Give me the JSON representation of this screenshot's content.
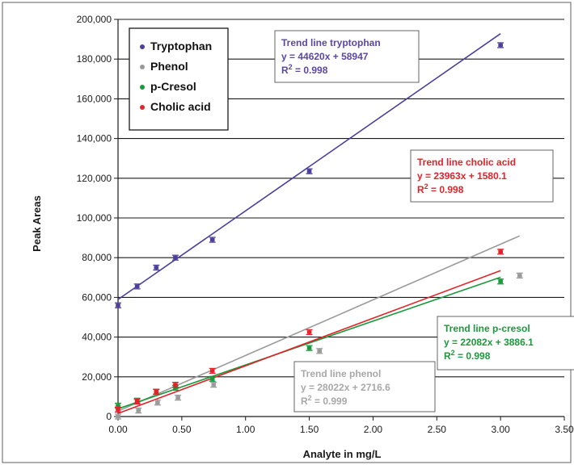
{
  "chart_data": {
    "type": "scatter",
    "title": "",
    "xlabel": "Analyte in mg/L",
    "ylabel": "Peak Areas",
    "xlim": [
      0,
      3.5
    ],
    "ylim": [
      0,
      200000
    ],
    "x_ticks": [
      "0.00",
      "0.50",
      "1.00",
      "1.50",
      "2.00",
      "2.50",
      "3.00",
      "3.50"
    ],
    "y_ticks": [
      "0",
      "20,000",
      "40,000",
      "60,000",
      "80,000",
      "100,000",
      "120,000",
      "140,000",
      "160,000",
      "180,000",
      "200,000"
    ],
    "grid": "horizontal",
    "legend_position": "top-left",
    "series": [
      {
        "name": "Tryptophan",
        "color": "#4b3f9a",
        "slope": 44620,
        "intercept": 58947,
        "points": [
          {
            "x": 0.0,
            "y": 56000
          },
          {
            "x": 0.15,
            "y": 65500
          },
          {
            "x": 0.3,
            "y": 75000
          },
          {
            "x": 0.45,
            "y": 80000
          },
          {
            "x": 0.74,
            "y": 89000
          },
          {
            "x": 1.5,
            "y": 123500
          },
          {
            "x": 3.0,
            "y": 187000
          }
        ]
      },
      {
        "name": "Phenol",
        "color": "#9a9a9a",
        "slope": 28022,
        "intercept": 2716.6,
        "points": [
          {
            "x": 0.0,
            "y": 0
          },
          {
            "x": 0.16,
            "y": 3000
          },
          {
            "x": 0.31,
            "y": 7000
          },
          {
            "x": 0.47,
            "y": 9500
          },
          {
            "x": 0.75,
            "y": 16000
          },
          {
            "x": 1.58,
            "y": 33000
          },
          {
            "x": 3.15,
            "y": 71000
          }
        ]
      },
      {
        "name": "p-Cresol",
        "color": "#1a9a3c",
        "slope": 22082,
        "intercept": 3886.1,
        "points": [
          {
            "x": 0.0,
            "y": 5500
          },
          {
            "x": 0.15,
            "y": 8000
          },
          {
            "x": 0.3,
            "y": 12500
          },
          {
            "x": 0.45,
            "y": 14500
          },
          {
            "x": 0.74,
            "y": 19000
          },
          {
            "x": 1.5,
            "y": 34500
          },
          {
            "x": 3.0,
            "y": 68000
          }
        ]
      },
      {
        "name": "Cholic acid",
        "color": "#e0242a",
        "slope": 23963,
        "intercept": 1580.1,
        "points": [
          {
            "x": 0.0,
            "y": 3500
          },
          {
            "x": 0.15,
            "y": 7500
          },
          {
            "x": 0.3,
            "y": 12500
          },
          {
            "x": 0.45,
            "y": 16000
          },
          {
            "x": 0.74,
            "y": 23000
          },
          {
            "x": 1.5,
            "y": 42500
          },
          {
            "x": 3.0,
            "y": 83000
          }
        ]
      }
    ],
    "annotations": [
      {
        "series": "Tryptophan",
        "title": "Trend line tryptophan",
        "equation": "y = 44620x + 58947",
        "r2_prefix": "R",
        "r2_sup": "2",
        "r2_value": " = 0.998",
        "color": "#5b46a8"
      },
      {
        "series": "Cholic acid",
        "title": "Trend line cholic acid",
        "equation": "y = 23963x + 1580.1",
        "r2_prefix": "R",
        "r2_sup": "2",
        "r2_value": " = 0.998",
        "color": "#e0242a"
      },
      {
        "series": "p-Cresol",
        "title": "Trend line p-cresol",
        "equation": "y = 22082x + 3886.1",
        "r2_prefix": "R",
        "r2_sup": "2",
        "r2_value": " = 0.998",
        "color": "#1a9a3c"
      },
      {
        "series": "Phenol",
        "title": "Trend line phenol",
        "equation": "y = 28022x + 2716.6",
        "r2_prefix": "R",
        "r2_sup": "2",
        "r2_value": " = 0.999",
        "color": "#a8a8a8"
      }
    ]
  }
}
